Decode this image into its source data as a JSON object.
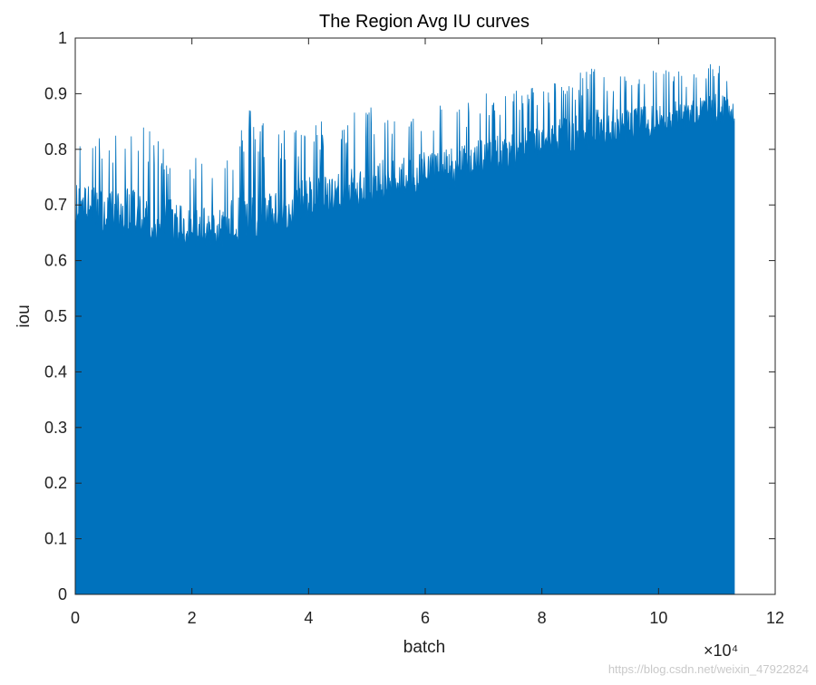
{
  "chart_data": {
    "type": "area",
    "title": "The Region Avg IU curves",
    "xlabel": "batch",
    "ylabel": "iou",
    "x_multiplier": "×10⁴",
    "xlim": [
      0,
      12
    ],
    "ylim": [
      0,
      1
    ],
    "x_ticks": [
      0,
      2,
      4,
      6,
      8,
      10,
      12
    ],
    "y_ticks": [
      0,
      0.1,
      0.2,
      0.3,
      0.4,
      0.5,
      0.6,
      0.7,
      0.8,
      0.9,
      1
    ],
    "x_units_scale": 10000,
    "x_end": 11.3,
    "series": [
      {
        "color": "#0072BD",
        "envelope_x": [
          0,
          0.5,
          1,
          1.5,
          2,
          2.5,
          3,
          3.5,
          4,
          4.5,
          5,
          5.5,
          6,
          6.5,
          7,
          7.5,
          8,
          8.5,
          9,
          9.5,
          10,
          10.5,
          11,
          11.3
        ],
        "base_y": [
          0.69,
          0.68,
          0.67,
          0.66,
          0.65,
          0.65,
          0.66,
          0.68,
          0.7,
          0.71,
          0.72,
          0.74,
          0.75,
          0.76,
          0.78,
          0.79,
          0.81,
          0.82,
          0.83,
          0.84,
          0.85,
          0.86,
          0.87,
          0.87
        ],
        "peak_y": [
          0.84,
          0.82,
          0.85,
          0.82,
          0.8,
          0.78,
          0.88,
          0.84,
          0.85,
          0.86,
          0.88,
          0.87,
          0.89,
          0.88,
          0.9,
          0.91,
          0.92,
          0.93,
          0.96,
          0.93,
          0.95,
          0.94,
          0.96,
          0.92
        ]
      }
    ],
    "grid": false,
    "legend": "none"
  },
  "watermark": "https://blog.csdn.net/weixin_47922824"
}
